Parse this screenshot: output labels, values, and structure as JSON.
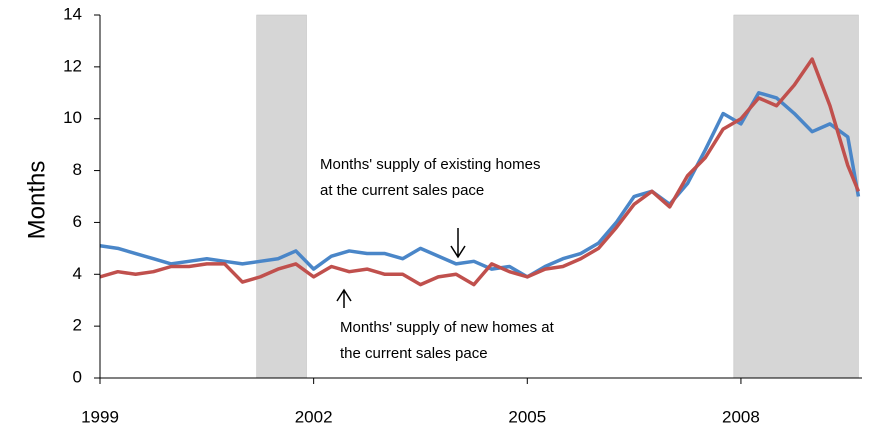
{
  "chart_data": {
    "type": "line",
    "y_label": "Months",
    "x": [
      1999.0,
      1999.25,
      1999.5,
      1999.75,
      2000.0,
      2000.25,
      2000.5,
      2000.75,
      2001.0,
      2001.25,
      2001.5,
      2001.75,
      2002.0,
      2002.25,
      2002.5,
      2002.75,
      2003.0,
      2003.25,
      2003.5,
      2003.75,
      2004.0,
      2004.25,
      2004.5,
      2004.75,
      2005.0,
      2005.25,
      2005.5,
      2005.75,
      2006.0,
      2006.25,
      2006.5,
      2006.75,
      2007.0,
      2007.25,
      2007.5,
      2007.75,
      2008.0,
      2008.25,
      2008.5,
      2008.75,
      2009.0,
      2009.25,
      2009.5,
      2009.65
    ],
    "series": [
      {
        "name": "Months' supply of existing homes",
        "color": "#4a86c8",
        "values": [
          5.1,
          5.0,
          4.8,
          4.6,
          4.4,
          4.5,
          4.6,
          4.5,
          4.4,
          4.5,
          4.6,
          4.9,
          4.2,
          4.7,
          4.9,
          4.8,
          4.8,
          4.6,
          5.0,
          4.7,
          4.4,
          4.5,
          4.2,
          4.3,
          3.9,
          4.3,
          4.6,
          4.8,
          5.2,
          6.0,
          7.0,
          7.2,
          6.7,
          7.5,
          8.8,
          10.2,
          9.8,
          11.0,
          10.8,
          10.2,
          9.5,
          9.8,
          9.3,
          7.0
        ]
      },
      {
        "name": "Months' supply of new homes",
        "color": "#c0504d",
        "values": [
          3.9,
          4.1,
          4.0,
          4.1,
          4.3,
          4.3,
          4.4,
          4.4,
          3.7,
          3.9,
          4.2,
          4.4,
          3.9,
          4.3,
          4.1,
          4.2,
          4.0,
          4.0,
          3.6,
          3.9,
          4.0,
          3.6,
          4.4,
          4.1,
          3.9,
          4.2,
          4.3,
          4.6,
          5.0,
          5.8,
          6.7,
          7.2,
          6.6,
          7.8,
          8.5,
          9.6,
          10.0,
          10.8,
          10.5,
          11.3,
          12.3,
          10.5,
          8.2,
          7.2
        ]
      }
    ],
    "recessions": [
      [
        2001.2,
        2001.9
      ],
      [
        2007.9,
        2009.65
      ]
    ],
    "annotations": [
      {
        "lines": [
          "Months' supply of existing homes",
          "at the current sales pace"
        ]
      },
      {
        "lines": [
          "Months' supply of new homes at",
          "the current sales pace"
        ]
      }
    ],
    "xlim": [
      1999,
      2009.7
    ],
    "xticks": [
      1999,
      2002,
      2005,
      2008
    ],
    "ylim": [
      0,
      14
    ],
    "yticks": [
      0,
      2,
      4,
      6,
      8,
      10,
      12,
      14
    ]
  }
}
